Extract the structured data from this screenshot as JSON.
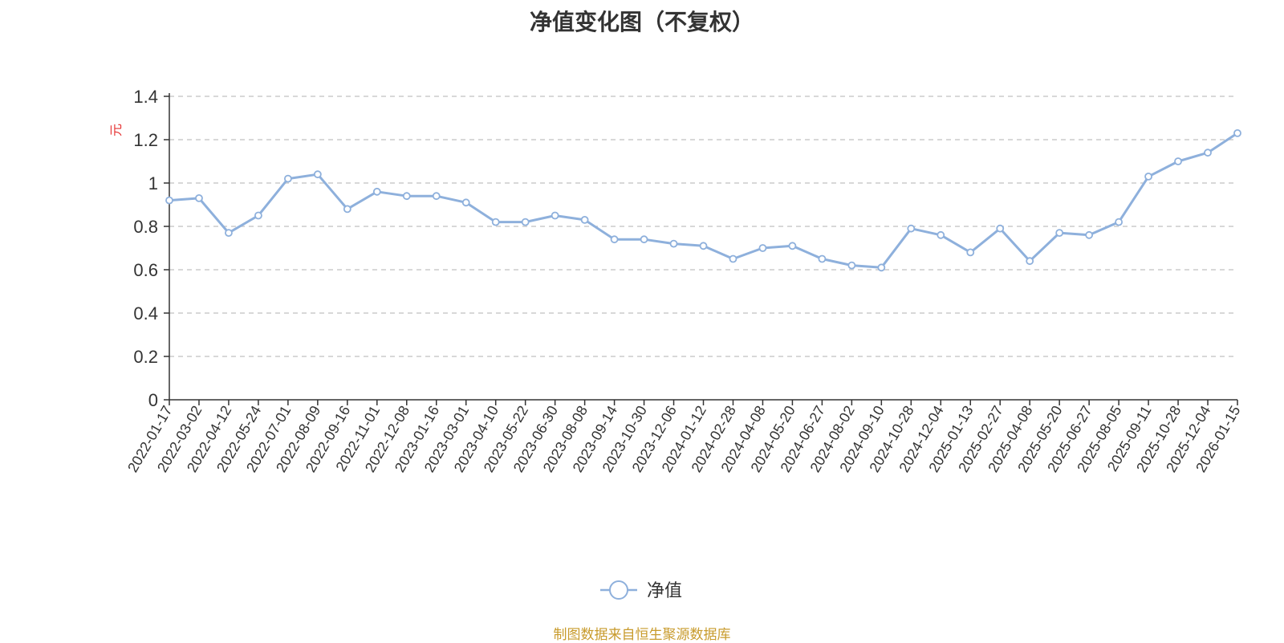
{
  "title": "净值变化图（不复权）",
  "footer": "制图数据来自恒生聚源数据库",
  "colors": {
    "line": "#8eb0dc",
    "ylabel": "#e63333",
    "grid": "#cccccc",
    "axis": "#333333"
  },
  "chart_data": {
    "type": "line",
    "title": "净值变化图（不复权）",
    "xlabel": "",
    "ylabel": "元",
    "ylim": [
      0,
      1.4
    ],
    "yticks": [
      "0",
      "0.2",
      "0.4",
      "0.6",
      "0.8",
      "1",
      "1.2",
      "1.4"
    ],
    "grid": true,
    "legend_position": "bottom-center",
    "categories": [
      "2022-01-17",
      "2022-03-02",
      "2022-04-12",
      "2022-05-24",
      "2022-07-01",
      "2022-08-09",
      "2022-09-16",
      "2022-11-01",
      "2022-12-08",
      "2023-01-16",
      "2023-03-01",
      "2023-04-10",
      "2023-05-22",
      "2023-06-30",
      "2023-08-08",
      "2023-09-14",
      "2023-10-30",
      "2023-12-06",
      "2024-01-12",
      "2024-02-28",
      "2024-04-08",
      "2024-05-20",
      "2024-06-27",
      "2024-08-02",
      "2024-09-10",
      "2024-10-28",
      "2024-12-04",
      "2025-01-13",
      "2025-02-27",
      "2025-04-08",
      "2025-05-20",
      "2025-06-27",
      "2025-08-05",
      "2025-09-11",
      "2025-10-28",
      "2025-12-04",
      "2026-01-15"
    ],
    "series": [
      {
        "name": "净值",
        "values": [
          0.92,
          0.93,
          0.77,
          0.85,
          1.02,
          1.04,
          0.88,
          0.96,
          0.94,
          0.94,
          0.91,
          0.82,
          0.82,
          0.85,
          0.83,
          0.74,
          0.74,
          0.72,
          0.71,
          0.65,
          0.7,
          0.71,
          0.65,
          0.62,
          0.61,
          0.79,
          0.76,
          0.68,
          0.79,
          0.64,
          0.77,
          0.76,
          0.82,
          1.03,
          1.1,
          1.14,
          1.23
        ]
      }
    ]
  }
}
